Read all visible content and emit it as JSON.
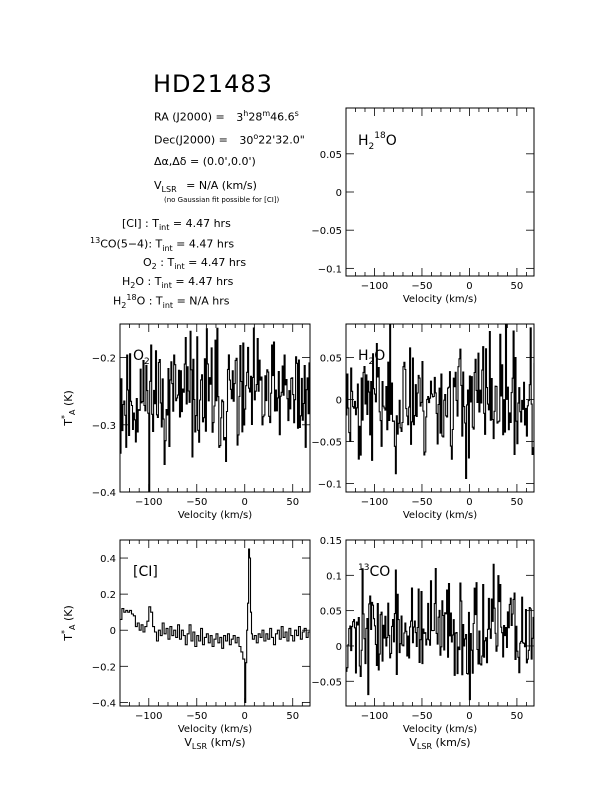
{
  "title": "HD21483",
  "info": {
    "ra_label": "RA (J2000) =",
    "ra_h": "3",
    "ra_m": "28",
    "ra_s": "46.6",
    "dec_label": "Dec(J2000) =",
    "dec_d": "30",
    "dec_rest": "22'32.0\"",
    "offset_label": "Δα,Δδ = (0.0',0.0')",
    "vlsr_label": "V",
    "vlsr_sub": "LSR",
    "vlsr_value": " = N/A (km/s)",
    "gauss_note": "(no Gaussian fit possible for [CI])",
    "tint": [
      {
        "line": "[CI] : T",
        "sub": "int",
        "value": " = 4.47 hrs"
      },
      {
        "line": "CO(5−4): T",
        "pre_sup": "13",
        "sub": "int",
        "value": " = 4.47 hrs"
      },
      {
        "line": "O",
        "line_sub": "2",
        "line_rest": " : T",
        "sub": "int",
        "value": " = 4.47 hrs"
      },
      {
        "line": "H",
        "line_sub": "2",
        "line_rest": "O : T",
        "sub": "int",
        "value": " = 4.47 hrs"
      },
      {
        "line": "H",
        "line_sub": "2",
        "line_sup": "18",
        "line_rest": "O : T",
        "sub": "int",
        "value": " = N/A hrs"
      }
    ]
  },
  "axis_labels": {
    "velocity": "Velocity (km/s)",
    "vlsr": "V",
    "vlsr_sub": "LSR",
    "vlsr_unit": " (km/s)",
    "ta": "T",
    "ta_sub": "A",
    "ta_sup": "*",
    "ta_unit": " (K)"
  },
  "chart_data": [
    {
      "id": "h218o",
      "type": "line",
      "label": "H2 18O",
      "xlim": [
        -130,
        68
      ],
      "ylim": [
        -0.11,
        0.11
      ],
      "xticks": [
        -100,
        -50,
        0,
        50
      ],
      "yticks": [
        -0.1,
        -0.05,
        0,
        0.05
      ],
      "ytick_labels": [
        "−0.1",
        "−0.05",
        "0",
        "0.05"
      ],
      "xlabel": "Velocity (km/s)",
      "ylabel": "",
      "series": []
    },
    {
      "id": "o2",
      "type": "line",
      "label": "O2",
      "xlim": [
        -130,
        68
      ],
      "ylim": [
        -0.4,
        -0.15
      ],
      "xticks": [
        -100,
        -50,
        0,
        50
      ],
      "yticks": [
        -0.4,
        -0.3,
        -0.2
      ],
      "ytick_labels": [
        "−0.4",
        "−0.3",
        "−0.2"
      ],
      "xlabel": "Velocity (km/s)",
      "ylabel": "TA* (K)",
      "noise": {
        "seed": 11,
        "mean": -0.26,
        "sigma": 0.045,
        "step": 1.0
      }
    },
    {
      "id": "h2o",
      "type": "line",
      "label": "H2O",
      "xlim": [
        -130,
        68
      ],
      "ylim": [
        -0.11,
        0.09
      ],
      "xticks": [
        -100,
        -50,
        0,
        50
      ],
      "yticks": [
        -0.1,
        -0.05,
        0,
        0.05
      ],
      "ytick_labels": [
        "−0.1",
        "−0.05",
        "0",
        "0.05"
      ],
      "xlabel": "Velocity (km/s)",
      "ylabel": "",
      "noise": {
        "seed": 23,
        "mean": 0.0,
        "sigma": 0.035,
        "step": 1.0
      }
    },
    {
      "id": "ci",
      "type": "line",
      "label": "[CI]",
      "xlim": [
        -130,
        68
      ],
      "ylim": [
        -0.42,
        0.5
      ],
      "xticks": [
        -100,
        -50,
        0,
        50
      ],
      "yticks": [
        -0.4,
        -0.2,
        0,
        0.2,
        0.4
      ],
      "ytick_labels": [
        "−0.4",
        "−0.2",
        "0",
        "0.2",
        "0.4"
      ],
      "xlabel": "Velocity (km/s)",
      "ylabel": "TA* (K)",
      "points": [
        [
          -130,
          0.06
        ],
        [
          -128,
          0.12
        ],
        [
          -126,
          0.1
        ],
        [
          -124,
          0.11
        ],
        [
          -122,
          0.1
        ],
        [
          -120,
          0.11
        ],
        [
          -118,
          0.09
        ],
        [
          -116,
          0.08
        ],
        [
          -114,
          0.02
        ],
        [
          -112,
          0.04
        ],
        [
          -110,
          0.0
        ],
        [
          -108,
          0.03
        ],
        [
          -106,
          -0.01
        ],
        [
          -104,
          0.02
        ],
        [
          -102,
          0.05
        ],
        [
          -100,
          0.13
        ],
        [
          -98,
          0.1
        ],
        [
          -96,
          0.02
        ],
        [
          -94,
          -0.01
        ],
        [
          -92,
          -0.06
        ],
        [
          -90,
          0.0
        ],
        [
          -88,
          -0.03
        ],
        [
          -86,
          0.04
        ],
        [
          -84,
          -0.02
        ],
        [
          -82,
          0.01
        ],
        [
          -80,
          -0.05
        ],
        [
          -78,
          0.02
        ],
        [
          -76,
          -0.03
        ],
        [
          -74,
          0.0
        ],
        [
          -72,
          -0.04
        ],
        [
          -70,
          0.03
        ],
        [
          -68,
          -0.05
        ],
        [
          -66,
          0.0
        ],
        [
          -64,
          -0.03
        ],
        [
          -62,
          -0.08
        ],
        [
          -60,
          -0.02
        ],
        [
          -58,
          0.03
        ],
        [
          -56,
          -0.06
        ],
        [
          -54,
          -0.01
        ],
        [
          -52,
          -0.09
        ],
        [
          -50,
          -0.03
        ],
        [
          -48,
          -0.06
        ],
        [
          -46,
          0.01
        ],
        [
          -44,
          -0.08
        ],
        [
          -42,
          -0.04
        ],
        [
          -40,
          -0.02
        ],
        [
          -38,
          -0.07
        ],
        [
          -36,
          -0.03
        ],
        [
          -34,
          -0.09
        ],
        [
          -32,
          -0.05
        ],
        [
          -30,
          -0.02
        ],
        [
          -28,
          -0.07
        ],
        [
          -26,
          -0.04
        ],
        [
          -24,
          -0.1
        ],
        [
          -22,
          -0.03
        ],
        [
          -20,
          -0.06
        ],
        [
          -18,
          -0.02
        ],
        [
          -16,
          -0.08
        ],
        [
          -14,
          -0.05
        ],
        [
          -12,
          -0.03
        ],
        [
          -10,
          -0.07
        ],
        [
          -8,
          -0.04
        ],
        [
          -6,
          -0.09
        ],
        [
          -4,
          -0.12
        ],
        [
          -2,
          -0.16
        ],
        [
          0,
          -0.4
        ],
        [
          1,
          -0.18
        ],
        [
          2,
          0.0
        ],
        [
          3,
          0.15
        ],
        [
          4,
          0.45
        ],
        [
          5,
          0.4
        ],
        [
          6,
          0.1
        ],
        [
          7,
          -0.02
        ],
        [
          8,
          -0.05
        ],
        [
          10,
          -0.03
        ],
        [
          12,
          -0.07
        ],
        [
          14,
          -0.02
        ],
        [
          16,
          -0.04
        ],
        [
          18,
          0.0
        ],
        [
          20,
          -0.06
        ],
        [
          22,
          -0.02
        ],
        [
          24,
          -0.05
        ],
        [
          26,
          0.01
        ],
        [
          28,
          -0.04
        ],
        [
          30,
          -0.08
        ],
        [
          32,
          -0.02
        ],
        [
          34,
          0.0
        ],
        [
          36,
          -0.05
        ],
        [
          38,
          0.02
        ],
        [
          40,
          -0.04
        ],
        [
          42,
          -0.01
        ],
        [
          44,
          -0.06
        ],
        [
          46,
          0.01
        ],
        [
          48,
          -0.03
        ],
        [
          50,
          -0.06
        ],
        [
          52,
          0.0
        ],
        [
          54,
          -0.03
        ],
        [
          56,
          0.02
        ],
        [
          58,
          -0.05
        ],
        [
          60,
          -0.01
        ],
        [
          62,
          0.01
        ],
        [
          64,
          -0.04
        ],
        [
          66,
          -0.01
        ],
        [
          68,
          -0.03
        ]
      ]
    },
    {
      "id": "co13",
      "type": "line",
      "label": "13CO",
      "xlim": [
        -130,
        68
      ],
      "ylim": [
        -0.085,
        0.15
      ],
      "xticks": [
        -100,
        -50,
        0,
        50
      ],
      "yticks": [
        -0.05,
        0,
        0.05,
        0.1,
        0.15
      ],
      "ytick_labels": [
        "−0.05",
        "0",
        "0.05",
        "0.1",
        "0.15"
      ],
      "xlabel": "Velocity (km/s)",
      "ylabel": "",
      "noise": {
        "seed": 37,
        "mean": 0.02,
        "sigma": 0.035,
        "step": 1.0
      }
    }
  ],
  "colors": {
    "axis": "#000000",
    "line": "#000000",
    "background": "#ffffff"
  }
}
